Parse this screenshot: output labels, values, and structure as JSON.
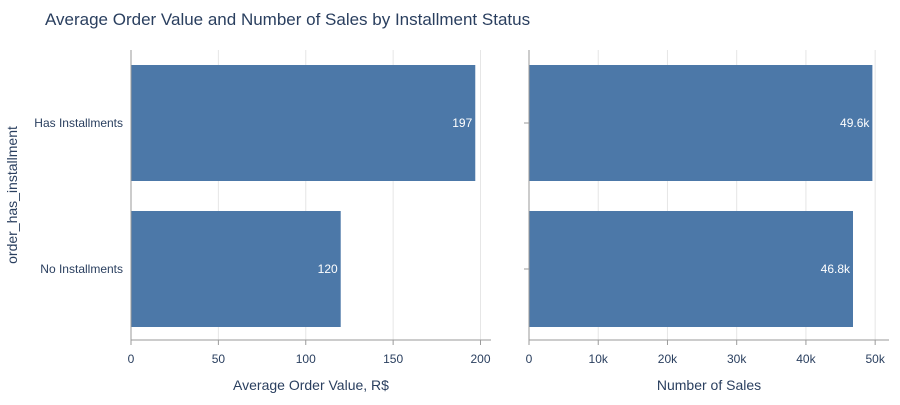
{
  "title": "Average Order Value and Number of Sales by Installment Status",
  "colors": {
    "background": "#ffffff",
    "bar": "#4c78a8",
    "grid": "#e6e6e6",
    "axis_line": "#9a9a9a",
    "text": "#2a3f5f",
    "bar_label": "#ffffff"
  },
  "chart_data": [
    {
      "type": "bar",
      "orientation": "horizontal",
      "title": "",
      "ylabel": "order_has_installment",
      "xlabel": "Average Order Value, R$",
      "categories": [
        "Has Installments",
        "No Installments"
      ],
      "values": [
        197,
        120
      ],
      "value_labels": [
        "197",
        "120"
      ],
      "xlim": [
        0,
        206
      ],
      "xticks": [
        0,
        50,
        100,
        150,
        200
      ],
      "xtick_labels": [
        "0",
        "50",
        "100",
        "150",
        "200"
      ],
      "grid": true,
      "legend": "none"
    },
    {
      "type": "bar",
      "orientation": "horizontal",
      "title": "",
      "ylabel": "",
      "xlabel": "Number of Sales",
      "categories": [
        "Has Installments",
        "No Installments"
      ],
      "values": [
        49600,
        46800
      ],
      "value_labels": [
        "49.6k",
        "46.8k"
      ],
      "xlim": [
        0,
        52000
      ],
      "xticks": [
        0,
        10000,
        20000,
        30000,
        40000,
        50000
      ],
      "xtick_labels": [
        "0",
        "10k",
        "20k",
        "30k",
        "40k",
        "50k"
      ],
      "grid": true,
      "legend": "none"
    }
  ]
}
